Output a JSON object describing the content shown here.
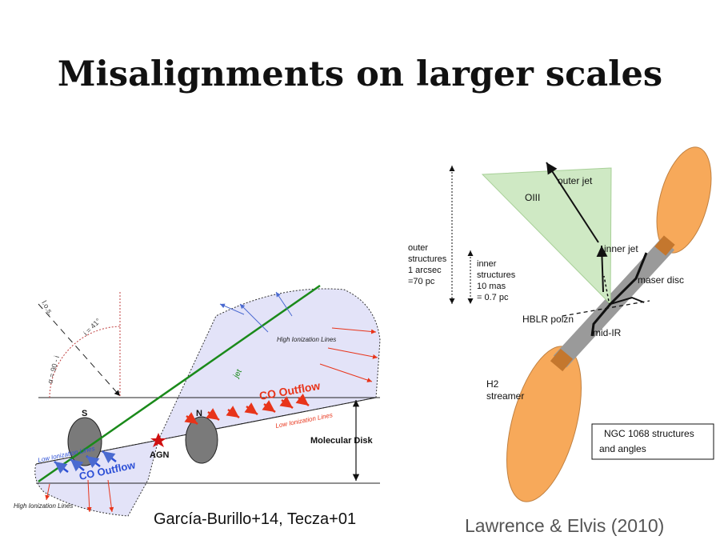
{
  "slide": {
    "title": "Misalignments on larger scales",
    "caption_left": "García-Burillo+14, Tecza+01",
    "caption_right": "Lawrence & Elvis (2010)"
  },
  "left_diagram": {
    "los_label": "l.o.s.",
    "incl_label": "i = 41°",
    "alpha_label": "α = 90 - i",
    "high_ion_upper": "High Ionization Lines",
    "jet_label": "jet",
    "co_outflow_upper": "CO Outflow",
    "low_ion_right": "Low Ionization Lines",
    "n_label": "N",
    "s_label": "S",
    "agn_label": "AGN",
    "molecular_disk": "Molecular Disk",
    "low_ion_left": "Low Ionization Lines",
    "co_outflow_lower": "CO Outflow",
    "high_ion_lower": "High Ionization Lines",
    "colors": {
      "cone_fill": "#e3e3f8",
      "jet": "#1a8a1a",
      "outflow_red": "#e8341a",
      "outflow_blue": "#2c4fd6",
      "blob": "#7a7a7a"
    }
  },
  "right_diagram": {
    "outer_structures": [
      "outer",
      "structures",
      "1 arcsec",
      "=70 pc"
    ],
    "inner_structures": [
      "inner",
      "structures",
      "10 mas",
      "= 0.7 pc"
    ],
    "oiii": "OIII",
    "outer_jet": "outer jet",
    "inner_jet": "inner jet",
    "maser_disc": "maser disc",
    "hblr": "HBLR polzn",
    "mid_ir": "mid-IR",
    "h2_streamer": [
      "H2",
      "streamer"
    ],
    "box_text": [
      "NGC 1068 structures",
      "and angles"
    ],
    "colors": {
      "cone_fill": "#cfe9c4",
      "lobe_fill": "#f7a95a",
      "bar": "#9a9a9a"
    }
  }
}
